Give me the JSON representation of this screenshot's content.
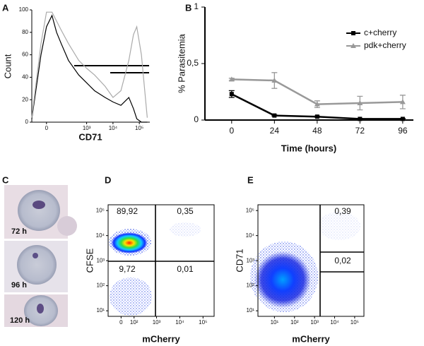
{
  "chart_data": [
    {
      "panel": "A",
      "type": "line",
      "ylabel": "Count",
      "xlabel": "CD71",
      "xscale": "biexponential",
      "xlim": [
        -100,
        250000
      ],
      "ylim": [
        0,
        100
      ],
      "xticks": [
        0,
        {
          "value": 1000,
          "label": "10³"
        },
        {
          "value": 10000,
          "label": "10⁴"
        },
        {
          "value": 100000,
          "label": "10⁵"
        }
      ],
      "yticks": [
        0,
        20,
        40,
        60,
        80,
        100
      ],
      "x": [
        -100,
        -30,
        0,
        30,
        60,
        100,
        200,
        500,
        1000,
        2000,
        5000,
        10000,
        20000,
        40000,
        60000,
        80000,
        120000,
        200000
      ],
      "series": [
        {
          "color": "#000000",
          "values": [
            3,
            60,
            85,
            95,
            80,
            70,
            55,
            42,
            35,
            28,
            22,
            18,
            15,
            22,
            12,
            3,
            0,
            0
          ]
        },
        {
          "color": "#aaaaaa",
          "values": [
            4,
            70,
            98,
            98,
            90,
            82,
            70,
            55,
            48,
            42,
            32,
            22,
            28,
            55,
            78,
            85,
            60,
            4
          ]
        }
      ]
    },
    {
      "panel": "B",
      "type": "line",
      "ylabel": "% Parasitemia",
      "xlabel": "Time (hours)",
      "xlim": [
        -15,
        102
      ],
      "ylim": [
        0,
        1
      ],
      "xticks": [
        0,
        24,
        48,
        72,
        96
      ],
      "yticks": [
        0,
        {
          "value": 0.5,
          "label": "0,5"
        },
        1
      ],
      "x": [
        0,
        24,
        48,
        72,
        96
      ],
      "legend": "upper right",
      "series": [
        {
          "name": "c+cherry",
          "color": "#000000",
          "marker": "square",
          "values": [
            0.23,
            0.04,
            0.03,
            0.01,
            0.01
          ],
          "errors": [
            0.03,
            0.005,
            0.005,
            0.005,
            0.005
          ]
        },
        {
          "name": "pdk+cherry",
          "color": "#999999",
          "marker": "triangle",
          "values": [
            0.36,
            0.35,
            0.14,
            0.15,
            0.16
          ],
          "errors": [
            0.01,
            0.07,
            0.03,
            0.06,
            0.06
          ]
        }
      ]
    },
    {
      "panel": "D",
      "type": "dot-plot",
      "ylabel": "CFSE",
      "xlabel": "mCherry",
      "xscale": "biexponential",
      "yscale": "log",
      "xlim": [
        -100,
        300000
      ],
      "ylim": [
        6,
        170000
      ],
      "xticks": [
        0,
        {
          "value": 100,
          "label": "10²"
        },
        {
          "value": 1000,
          "label": "10³"
        },
        {
          "value": 10000,
          "label": "10⁴"
        },
        {
          "value": 100000,
          "label": "10⁵"
        }
      ],
      "yticks": [
        {
          "value": 10,
          "label": "10¹"
        },
        {
          "value": 100,
          "label": "10²"
        },
        {
          "value": 1000,
          "label": "10³"
        },
        {
          "value": 10000,
          "label": "10⁴"
        },
        {
          "value": 100000,
          "label": "10⁵"
        }
      ],
      "values": [
        89.92,
        0.35,
        9.72,
        0.01
      ],
      "value_labels": [
        "89,92",
        "0,35",
        "9,72",
        "0,01"
      ]
    },
    {
      "panel": "E",
      "type": "dot-plot",
      "ylabel": "CD71",
      "xlabel": "mCherry",
      "xscale": "log",
      "yscale": "log",
      "xlim": [
        1.5,
        290000
      ],
      "ylim": [
        6,
        170000
      ],
      "xticks": [
        {
          "value": 10,
          "label": "10¹"
        },
        {
          "value": 100,
          "label": "10²"
        },
        {
          "value": 1000,
          "label": "10³"
        },
        {
          "value": 10000,
          "label": "10⁴"
        },
        {
          "value": 100000,
          "label": "10⁵"
        }
      ],
      "yticks": [
        {
          "value": 10,
          "label": "10¹"
        },
        {
          "value": 100,
          "label": "10²"
        },
        {
          "value": 1000,
          "label": "10³"
        },
        {
          "value": 10000,
          "label": "10⁴"
        },
        {
          "value": 100000,
          "label": "10⁵"
        }
      ],
      "values": [
        0.39,
        0.02
      ],
      "value_labels": [
        "0,39",
        "0,02"
      ]
    }
  ],
  "images": {
    "panel": "C",
    "labels": [
      "72 h",
      "96 h",
      "120 h"
    ]
  }
}
